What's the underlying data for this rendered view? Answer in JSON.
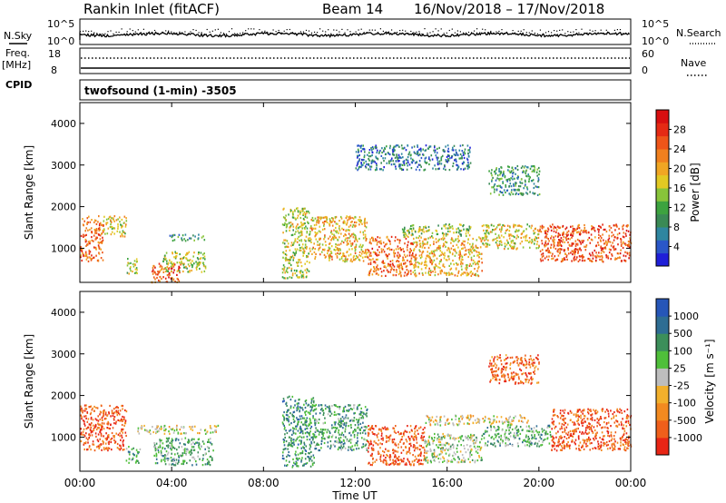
{
  "header": {
    "station": "Rankin Inlet (fitACF)",
    "beam": "Beam 14",
    "dates": "16/Nov/2018 – 17/Nov/2018"
  },
  "aux_panels": {
    "nsky_label": "N.Sky",
    "nsearch_label": "N.Search",
    "nsky_ticks": [
      "10^5",
      "10^0"
    ],
    "nsearch_ticks": [
      "10^5",
      "10^0"
    ],
    "freq_label": "Freq.",
    "freq_unit": "[MHz]",
    "freq_ticks": [
      "18",
      "8"
    ],
    "nave_label": "Nave",
    "nave_ticks": [
      "60",
      "0"
    ],
    "cpid_label": "CPID",
    "cpid_name": "twofsound (1-min) -3505"
  },
  "chart_data": [
    {
      "type": "heatmap",
      "name": "power",
      "ylabel": "Slant Range [km]",
      "xlabel": "",
      "yticks": [
        "1000",
        "2000",
        "3000",
        "4000"
      ],
      "ylim": [
        180,
        4500
      ],
      "xlim": [
        0,
        24
      ],
      "colorbar": {
        "label": "Power [dB]",
        "ticks": [
          "4",
          "8",
          "12",
          "16",
          "20",
          "24",
          "28"
        ],
        "colors": [
          "#1f1fd8",
          "#2a57c8",
          "#2f86a0",
          "#3a8a55",
          "#3da33f",
          "#88c43a",
          "#e2c923",
          "#f0a623",
          "#f0801e",
          "#ee5519",
          "#e52a14",
          "#d80f10"
        ]
      },
      "regions": [
        {
          "t0": 0.0,
          "t1": 1.0,
          "r0": 700,
          "r1": 1800,
          "v": 0.75
        },
        {
          "t0": 1.0,
          "t1": 2.0,
          "r0": 1300,
          "r1": 1800,
          "v": 0.55
        },
        {
          "t0": 2.0,
          "t1": 2.5,
          "r0": 400,
          "r1": 800,
          "v": 0.45
        },
        {
          "t0": 3.1,
          "t1": 4.4,
          "r0": 200,
          "r1": 650,
          "v": 0.8
        },
        {
          "t0": 3.6,
          "t1": 5.5,
          "r0": 450,
          "r1": 950,
          "v": 0.5
        },
        {
          "t0": 3.8,
          "t1": 5.4,
          "r0": 1200,
          "r1": 1350,
          "v": 0.3
        },
        {
          "t0": 8.8,
          "t1": 10.0,
          "r0": 300,
          "r1": 2000,
          "v": 0.5
        },
        {
          "t0": 10.0,
          "t1": 12.5,
          "r0": 700,
          "r1": 1800,
          "v": 0.6
        },
        {
          "t0": 12.5,
          "t1": 14.5,
          "r0": 350,
          "r1": 1300,
          "v": 0.75
        },
        {
          "t0": 14.5,
          "t1": 17.5,
          "r0": 350,
          "r1": 1300,
          "v": 0.6
        },
        {
          "t0": 14.0,
          "t1": 17.0,
          "r0": 1300,
          "r1": 1600,
          "v": 0.45
        },
        {
          "t0": 17.5,
          "t1": 20.0,
          "r0": 1000,
          "r1": 1600,
          "v": 0.55
        },
        {
          "t0": 20.0,
          "t1": 24.0,
          "r0": 700,
          "r1": 1600,
          "v": 0.8
        },
        {
          "t0": 17.8,
          "t1": 20.0,
          "r0": 2300,
          "r1": 3000,
          "v": 0.3
        },
        {
          "t0": 12.0,
          "t1": 17.0,
          "r0": 2900,
          "r1": 3500,
          "v": 0.2
        }
      ]
    },
    {
      "type": "heatmap",
      "name": "velocity",
      "ylabel": "Slant Range [km]",
      "xlabel": "Time UT",
      "xticks": [
        "00:00",
        "04:00",
        "08:00",
        "12:00",
        "16:00",
        "20:00",
        "00:00"
      ],
      "yticks": [
        "1000",
        "2000",
        "3000",
        "4000"
      ],
      "ylim": [
        180,
        4500
      ],
      "xlim": [
        0,
        24
      ],
      "colorbar": {
        "label": "Velocity [m s⁻¹]",
        "ticks": [
          "-1000",
          "-500",
          "-100",
          "-25",
          "25",
          "100",
          "500",
          "1000"
        ],
        "colors": [
          "#e82515",
          "#ef5f1b",
          "#f28a20",
          "#f2b02c",
          "#bdbdbd",
          "#4fbf3a",
          "#3c8f5a",
          "#2e6d93",
          "#2656b8"
        ]
      },
      "regions": [
        {
          "t0": 0.0,
          "t1": 2.0,
          "r0": 700,
          "r1": 1800,
          "v": 0.15
        },
        {
          "t0": 2.0,
          "t1": 2.6,
          "r0": 400,
          "r1": 800,
          "v": 0.7
        },
        {
          "t0": 3.2,
          "t1": 5.8,
          "r0": 350,
          "r1": 1000,
          "v": 0.65
        },
        {
          "t0": 2.5,
          "t1": 6.0,
          "r0": 1100,
          "r1": 1300,
          "v": 0.45
        },
        {
          "t0": 8.8,
          "t1": 10.2,
          "r0": 300,
          "r1": 2000,
          "v": 0.75
        },
        {
          "t0": 10.2,
          "t1": 12.5,
          "r0": 700,
          "r1": 1800,
          "v": 0.7
        },
        {
          "t0": 12.5,
          "t1": 15.0,
          "r0": 350,
          "r1": 1300,
          "v": 0.15
        },
        {
          "t0": 15.0,
          "t1": 17.5,
          "r0": 400,
          "r1": 1100,
          "v": 0.55
        },
        {
          "t0": 15.0,
          "t1": 19.5,
          "r0": 1300,
          "r1": 1550,
          "v": 0.45
        },
        {
          "t0": 17.5,
          "t1": 20.5,
          "r0": 800,
          "r1": 1300,
          "v": 0.65
        },
        {
          "t0": 20.5,
          "t1": 24.0,
          "r0": 700,
          "r1": 1700,
          "v": 0.15
        },
        {
          "t0": 17.8,
          "t1": 20.0,
          "r0": 2300,
          "r1": 3000,
          "v": 0.2
        }
      ]
    }
  ]
}
